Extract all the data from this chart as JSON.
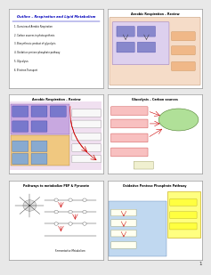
{
  "background_color": "#ffffff",
  "page_background": "#e8e8e8",
  "figure_width": 2.31,
  "figure_height": 3.0,
  "dpi": 100,
  "page_number": "1",
  "panels": [
    {
      "row": 0,
      "col": 0,
      "title": "Outline – Respiration and Lipid Metabolism",
      "title_color": "#0000bb",
      "type": "text",
      "content_lines": [
        "1. Overview of Aerobic Respiration",
        "2. Carbon sources in photosynthesis",
        "3. Biosynthesis: product of glycolysis",
        "4. Oxidative pentose phosphate pathway",
        "5. Glycolysis",
        "6. Electron Transport"
      ],
      "bg": "#ffffff",
      "border_color": "#999999"
    },
    {
      "row": 0,
      "col": 1,
      "title": "Aerobic Respiration – Review",
      "title_color": "#000000",
      "type": "diagram_top_right",
      "bg": "#ffffff",
      "border_color": "#999999"
    },
    {
      "row": 1,
      "col": 0,
      "title": "Aerobic Respiration – Review",
      "title_color": "#000000",
      "type": "diagram_mid_left",
      "bg": "#ffffff",
      "border_color": "#999999"
    },
    {
      "row": 1,
      "col": 1,
      "title": "Glucolysis – Carbon sources",
      "title_color": "#000000",
      "type": "diagram_mid_right",
      "bg": "#ffffff",
      "border_color": "#999999"
    },
    {
      "row": 2,
      "col": 0,
      "title": "Pathways to metabolize PEP & Pyruvate",
      "title_color": "#000000",
      "type": "diagram_bot_left",
      "bg": "#ffffff",
      "border_color": "#999999"
    },
    {
      "row": 2,
      "col": 1,
      "title": "Oxidative Pentose Phosphate Pathway",
      "title_color": "#000000",
      "type": "diagram_bot_right",
      "bg": "#ffffff",
      "border_color": "#999999"
    }
  ]
}
